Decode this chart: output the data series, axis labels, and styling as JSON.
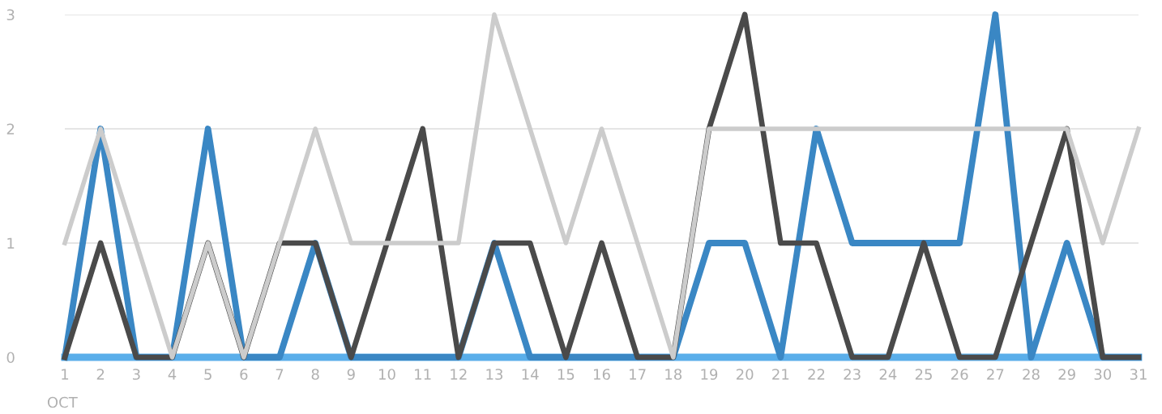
{
  "chart_data": {
    "type": "line",
    "categories": [
      "1",
      "2",
      "3",
      "4",
      "5",
      "6",
      "7",
      "8",
      "9",
      "10",
      "11",
      "12",
      "13",
      "14",
      "15",
      "16",
      "17",
      "18",
      "19",
      "20",
      "21",
      "22",
      "23",
      "24",
      "25",
      "26",
      "27",
      "28",
      "29",
      "30",
      "31"
    ],
    "series": [
      {
        "color": "#5aaeea",
        "values": [
          0,
          0,
          0,
          0,
          0,
          0,
          0,
          0,
          0,
          0,
          0,
          0,
          0,
          0,
          0,
          0,
          0,
          0,
          0,
          0,
          0,
          0,
          0,
          0,
          0,
          0,
          0,
          0,
          0,
          0,
          0
        ]
      },
      {
        "color": "#3a87c4",
        "values": [
          0,
          2,
          0,
          0,
          2,
          0,
          0,
          1,
          0,
          0,
          0,
          0,
          1,
          0,
          0,
          0,
          0,
          0,
          1,
          1,
          0,
          2,
          1,
          1,
          1,
          1,
          3,
          0,
          1,
          0,
          0
        ]
      },
      {
        "color": "#4a4a4a",
        "values": [
          0,
          1,
          0,
          0,
          1,
          0,
          1,
          1,
          0,
          1,
          2,
          0,
          1,
          1,
          0,
          1,
          0,
          0,
          2,
          3,
          1,
          1,
          0,
          0,
          1,
          0,
          0,
          1,
          2,
          0,
          0
        ]
      },
      {
        "color": "#cccccc",
        "values": [
          1,
          2,
          1,
          0,
          1,
          0,
          1,
          2,
          1,
          1,
          1,
          1,
          3,
          2,
          1,
          2,
          1,
          0,
          2,
          2,
          2,
          2,
          2,
          2,
          2,
          2,
          2,
          2,
          2,
          1,
          2
        ]
      }
    ],
    "ylim": [
      0,
      3
    ],
    "yticks": [
      0,
      1,
      2,
      3
    ],
    "grid": "y",
    "marker": "none",
    "line_style": "solid",
    "annotations": [
      "OCT"
    ]
  }
}
